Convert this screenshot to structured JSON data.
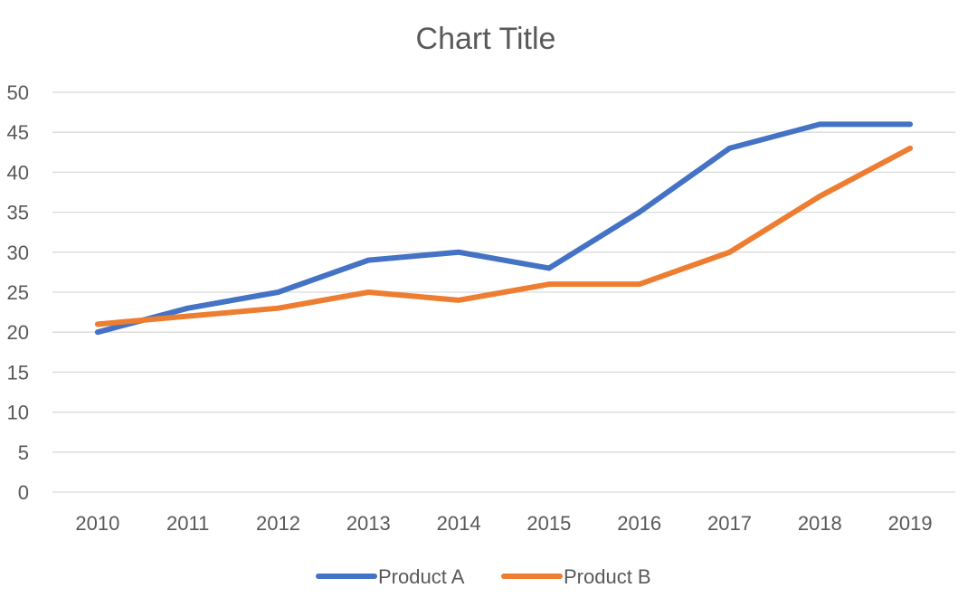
{
  "chart_data": {
    "type": "line",
    "title": "Chart Title",
    "xlabel": "",
    "ylabel": "",
    "categories": [
      "2010",
      "2011",
      "2012",
      "2013",
      "2014",
      "2015",
      "2016",
      "2017",
      "2018",
      "2019"
    ],
    "ylim": [
      0,
      50
    ],
    "yticks": [
      0,
      5,
      10,
      15,
      20,
      25,
      30,
      35,
      40,
      45,
      50
    ],
    "grid": true,
    "legend_position": "bottom",
    "series": [
      {
        "name": "Product A",
        "color": "#4472C4",
        "values": [
          20,
          23,
          25,
          29,
          30,
          28,
          35,
          43,
          46,
          46
        ]
      },
      {
        "name": "Product B",
        "color": "#ED7D31",
        "values": [
          21,
          22,
          23,
          25,
          24,
          26,
          26,
          30,
          37,
          43
        ]
      }
    ]
  }
}
